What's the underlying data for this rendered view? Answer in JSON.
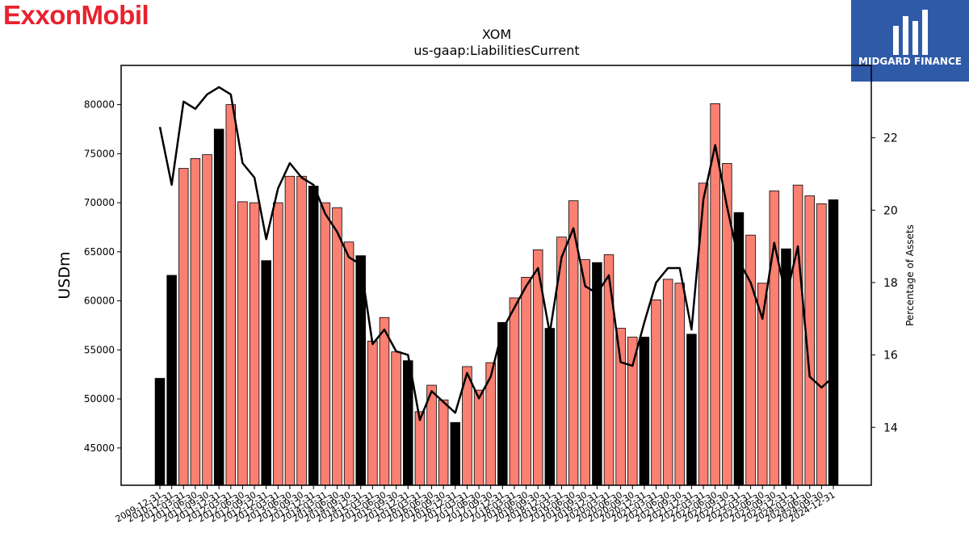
{
  "branding": {
    "company_logo_text": "ExxonMobil",
    "company_logo_color": "#e8222f",
    "partner_logo_text": "MIDGARD FINANCE",
    "partner_logo_bg": "#2f5aa8"
  },
  "chart_data": {
    "type": "bar",
    "title": "XOM",
    "subtitle": "us-gaap:LiabilitiesCurrent",
    "ylabel": "USDm",
    "y2label": "Percentage of Assets",
    "ylim": [
      41200,
      84000
    ],
    "y2lim": [
      12.4,
      24.0
    ],
    "yticks": [
      45000,
      50000,
      55000,
      60000,
      65000,
      70000,
      75000,
      80000
    ],
    "y2ticks": [
      14,
      16,
      18,
      20,
      22
    ],
    "grid": false,
    "colors": {
      "quarter": "#fa8072",
      "annual": "#000000",
      "line": "#000000"
    },
    "categories": [
      "2009-12-31",
      "2010-12-31",
      "2011-03-31",
      "2011-06-30",
      "2011-09-30",
      "2011-12-31",
      "2012-03-31",
      "2012-06-30",
      "2012-09-30",
      "2012-12-31",
      "2013-03-31",
      "2013-06-30",
      "2013-09-30",
      "2013-12-31",
      "2014-03-31",
      "2014-06-30",
      "2014-09-30",
      "2014-12-31",
      "2015-03-31",
      "2015-06-30",
      "2015-09-30",
      "2015-12-31",
      "2016-03-31",
      "2016-06-30",
      "2016-09-30",
      "2016-12-31",
      "2017-03-31",
      "2017-06-30",
      "2017-09-30",
      "2017-12-31",
      "2018-03-31",
      "2018-06-30",
      "2018-09-30",
      "2018-12-31",
      "2019-03-31",
      "2019-06-30",
      "2019-09-30",
      "2019-12-31",
      "2020-03-31",
      "2020-06-30",
      "2020-09-30",
      "2020-12-31",
      "2021-03-31",
      "2021-06-30",
      "2021-09-30",
      "2021-12-31",
      "2022-03-31",
      "2022-06-30",
      "2022-09-30",
      "2022-12-31",
      "2023-03-31",
      "2023-06-30",
      "2023-09-30",
      "2023-12-31",
      "2024-03-31",
      "2024-06-30",
      "2024-09-30",
      "2024-12-31"
    ],
    "annual": [
      true,
      true,
      false,
      false,
      false,
      true,
      false,
      false,
      false,
      true,
      false,
      false,
      false,
      true,
      false,
      false,
      false,
      true,
      false,
      false,
      false,
      true,
      false,
      false,
      false,
      true,
      false,
      false,
      false,
      true,
      false,
      false,
      false,
      true,
      false,
      false,
      false,
      true,
      false,
      false,
      false,
      true,
      false,
      false,
      false,
      true,
      false,
      false,
      false,
      true,
      false,
      false,
      false,
      true,
      false,
      false,
      false,
      true
    ],
    "series": [
      {
        "name": "USDm",
        "values": [
          52100,
          62600,
          73500,
          74500,
          74900,
          77500,
          80000,
          70100,
          70000,
          64100,
          70000,
          72700,
          72700,
          71700,
          70000,
          69500,
          66000,
          64600,
          55900,
          58300,
          54800,
          53900,
          48700,
          51400,
          49900,
          47600,
          53300,
          50900,
          53700,
          57800,
          60300,
          62400,
          65200,
          57200,
          66500,
          70200,
          64200,
          63900,
          64700,
          57200,
          56300,
          56300,
          60100,
          62200,
          61800,
          56600,
          72000,
          80100,
          74000,
          69000,
          66700,
          61800,
          71200,
          65300,
          71800,
          70700,
          69900,
          70300
        ]
      },
      {
        "name": "Percentage of Assets",
        "values": [
          22.3,
          20.7,
          23.0,
          22.8,
          23.2,
          23.4,
          23.2,
          21.3,
          20.9,
          19.2,
          20.6,
          21.3,
          20.9,
          20.7,
          19.9,
          19.4,
          18.7,
          18.5,
          16.3,
          16.7,
          16.1,
          16.0,
          14.2,
          15.0,
          14.7,
          14.4,
          15.5,
          14.8,
          15.4,
          16.7,
          17.3,
          17.9,
          18.4,
          16.6,
          18.7,
          19.5,
          17.9,
          17.7,
          18.2,
          15.8,
          15.7,
          16.9,
          18.0,
          18.4,
          18.4,
          16.7,
          20.3,
          21.8,
          20.1,
          18.6,
          18.0,
          17.0,
          19.1,
          17.6,
          19.0,
          15.4,
          15.1,
          15.4
        ]
      }
    ]
  }
}
